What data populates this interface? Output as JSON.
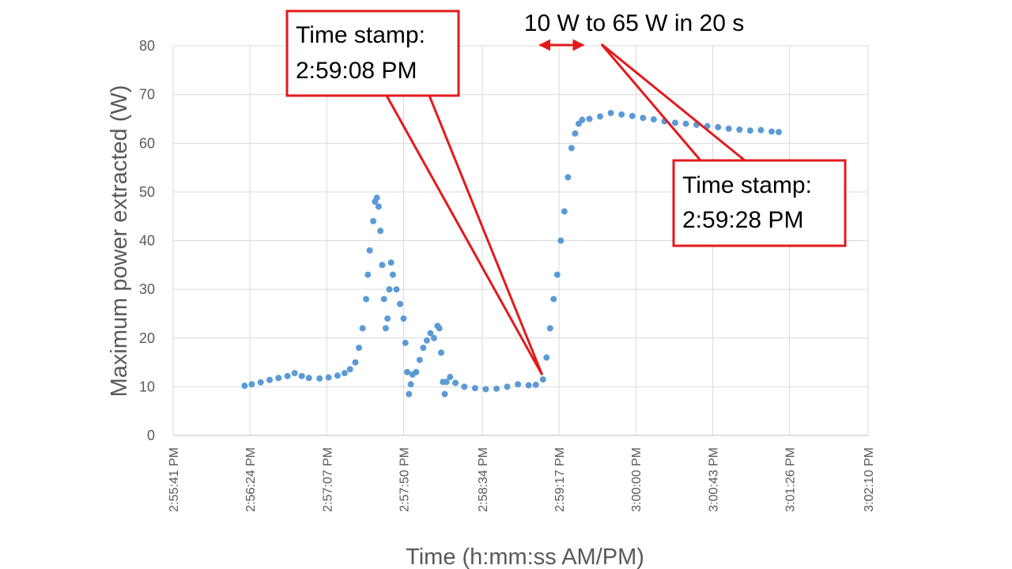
{
  "chart_data": {
    "type": "scatter",
    "title": "",
    "xlabel": "Time (h:mm:ss AM/PM)",
    "ylabel": "Maximum power extracted (W)",
    "ylim": [
      0,
      80
    ],
    "yticks": [
      "0",
      "10",
      "20",
      "30",
      "40",
      "50",
      "60",
      "70",
      "80"
    ],
    "xlim": [
      "2:55:41 PM",
      "3:02:10 PM"
    ],
    "xticks": [
      "2:55:41 PM",
      "2:56:24 PM",
      "2:57:07 PM",
      "2:57:50 PM",
      "2:58:34 PM",
      "2:59:17 PM",
      "3:00:00 PM",
      "3:00:43 PM",
      "3:01:26 PM",
      "3:02:10 PM"
    ],
    "grid": true,
    "series": [
      {
        "color": "#5b9bd5",
        "points": [
          [
            "2:56:21 PM",
            10.2
          ],
          [
            "2:56:25 PM",
            10.5
          ],
          [
            "2:56:30 PM",
            10.9
          ],
          [
            "2:56:35 PM",
            11.4
          ],
          [
            "2:56:40 PM",
            11.8
          ],
          [
            "2:56:45 PM",
            12.2
          ],
          [
            "2:56:49 PM",
            12.8
          ],
          [
            "2:56:53 PM",
            12.2
          ],
          [
            "2:56:57 PM",
            11.8
          ],
          [
            "2:57:03 PM",
            11.7
          ],
          [
            "2:57:08 PM",
            11.9
          ],
          [
            "2:57:13 PM",
            12.3
          ],
          [
            "2:57:17 PM",
            12.8
          ],
          [
            "2:57:20 PM",
            13.6
          ],
          [
            "2:57:23 PM",
            15.0
          ],
          [
            "2:57:25 PM",
            18.0
          ],
          [
            "2:57:27 PM",
            22.0
          ],
          [
            "2:57:29 PM",
            28.0
          ],
          [
            "2:57:30 PM",
            33.0
          ],
          [
            "2:57:31 PM",
            38.0
          ],
          [
            "2:57:33 PM",
            44.0
          ],
          [
            "2:57:34 PM",
            48.0
          ],
          [
            "2:57:35 PM",
            48.8
          ],
          [
            "2:57:36 PM",
            47.0
          ],
          [
            "2:57:37 PM",
            42.0
          ],
          [
            "2:57:38 PM",
            35.0
          ],
          [
            "2:57:39 PM",
            28.0
          ],
          [
            "2:57:40 PM",
            22.0
          ],
          [
            "2:57:41 PM",
            24.0
          ],
          [
            "2:57:42 PM",
            30.0
          ],
          [
            "2:57:43 PM",
            35.5
          ],
          [
            "2:57:44 PM",
            33.0
          ],
          [
            "2:57:46 PM",
            30.0
          ],
          [
            "2:57:48 PM",
            27.0
          ],
          [
            "2:57:50 PM",
            24.0
          ],
          [
            "2:57:51 PM",
            19.0
          ],
          [
            "2:57:52 PM",
            13.0
          ],
          [
            "2:57:53 PM",
            8.5
          ],
          [
            "2:57:54 PM",
            10.5
          ],
          [
            "2:57:55 PM",
            12.5
          ],
          [
            "2:57:57 PM",
            13.0
          ],
          [
            "2:57:59 PM",
            15.5
          ],
          [
            "2:58:01 PM",
            18.0
          ],
          [
            "2:58:03 PM",
            19.5
          ],
          [
            "2:58:05 PM",
            21.0
          ],
          [
            "2:58:07 PM",
            20.0
          ],
          [
            "2:58:09 PM",
            22.5
          ],
          [
            "2:58:10 PM",
            22.0
          ],
          [
            "2:58:11 PM",
            17.0
          ],
          [
            "2:58:12 PM",
            11.0
          ],
          [
            "2:58:13 PM",
            8.5
          ],
          [
            "2:58:14 PM",
            11.0
          ],
          [
            "2:58:16 PM",
            12.0
          ],
          [
            "2:58:19 PM",
            10.8
          ],
          [
            "2:58:24 PM",
            10.0
          ],
          [
            "2:58:30 PM",
            9.7
          ],
          [
            "2:58:36 PM",
            9.5
          ],
          [
            "2:58:42 PM",
            9.6
          ],
          [
            "2:58:48 PM",
            10.0
          ],
          [
            "2:58:54 PM",
            10.5
          ],
          [
            "2:59:00 PM",
            10.3
          ],
          [
            "2:59:04 PM",
            10.4
          ],
          [
            "2:59:08 PM",
            11.5
          ],
          [
            "2:59:10 PM",
            16.0
          ],
          [
            "2:59:12 PM",
            22.0
          ],
          [
            "2:59:14 PM",
            28.0
          ],
          [
            "2:59:16 PM",
            33.0
          ],
          [
            "2:59:18 PM",
            40.0
          ],
          [
            "2:59:20 PM",
            46.0
          ],
          [
            "2:59:22 PM",
            53.0
          ],
          [
            "2:59:24 PM",
            59.0
          ],
          [
            "2:59:26 PM",
            62.0
          ],
          [
            "2:59:28 PM",
            64.0
          ],
          [
            "2:59:30 PM",
            64.8
          ],
          [
            "2:59:34 PM",
            65.0
          ],
          [
            "2:59:40 PM",
            65.5
          ],
          [
            "2:59:46 PM",
            66.2
          ],
          [
            "2:59:52 PM",
            65.9
          ],
          [
            "2:59:58 PM",
            65.6
          ],
          [
            "3:00:04 PM",
            65.2
          ],
          [
            "3:00:10 PM",
            64.9
          ],
          [
            "3:00:16 PM",
            64.5
          ],
          [
            "3:00:22 PM",
            64.2
          ],
          [
            "3:00:28 PM",
            64.0
          ],
          [
            "3:00:34 PM",
            63.8
          ],
          [
            "3:00:40 PM",
            63.5
          ],
          [
            "3:00:46 PM",
            63.3
          ],
          [
            "3:00:52 PM",
            63.0
          ],
          [
            "3:00:58 PM",
            62.8
          ],
          [
            "3:01:04 PM",
            62.6
          ],
          [
            "3:01:10 PM",
            62.7
          ],
          [
            "3:01:16 PM",
            62.4
          ],
          [
            "3:01:20 PM",
            62.3
          ]
        ]
      }
    ],
    "annotations": [
      {
        "lines": [
          "Time stamp:",
          "2:59:08 PM"
        ],
        "box_color": "#e31a1c",
        "points_to": [
          "2:59:04 PM",
          10.5
        ]
      },
      {
        "lines": [
          "Time stamp:",
          "2:59:28 PM"
        ],
        "box_color": "#e31a1c",
        "points_to": [
          "2:59:39 PM",
          80
        ]
      },
      {
        "text": "10 W to 65 W in 20 s",
        "arrow_color": "#e31a1c",
        "span": [
          "2:59:08 PM",
          "2:59:28 PM"
        ]
      }
    ]
  }
}
